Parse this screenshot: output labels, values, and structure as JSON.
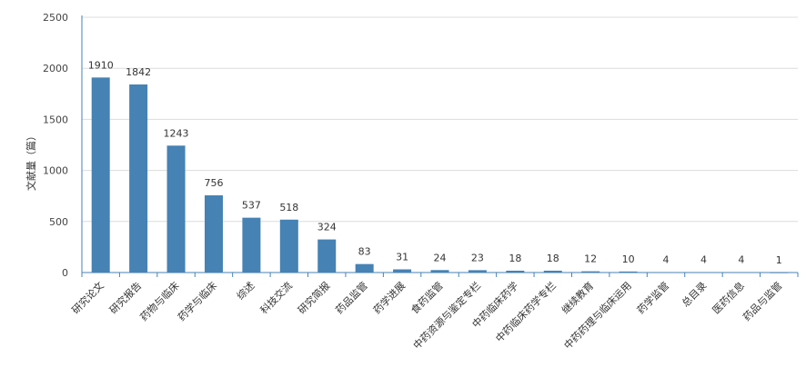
{
  "chart_data": {
    "type": "bar",
    "title": "",
    "xlabel": "",
    "ylabel": "文献量（篇）",
    "ylim": [
      0,
      2500
    ],
    "yticks": [
      0,
      500,
      1000,
      1500,
      2000,
      2500
    ],
    "grid": true,
    "legend": "none",
    "bar_color": "#4682b4",
    "categories": [
      "研究论文",
      "研究报告",
      "药物与临床",
      "药学与临床",
      "综述",
      "科技交流",
      "研究简报",
      "药品监管",
      "药学进展",
      "食药监管",
      "中药资源与鉴定专栏",
      "中药临床药学",
      "中药临床药学专栏",
      "继续教育",
      "中药药理与临床运用",
      "药学监管",
      "总目录",
      "医药信息",
      "药品与监管"
    ],
    "values": [
      1910,
      1842,
      1243,
      756,
      537,
      518,
      324,
      83,
      31,
      24,
      23,
      18,
      18,
      12,
      10,
      4,
      4,
      4,
      1
    ]
  }
}
